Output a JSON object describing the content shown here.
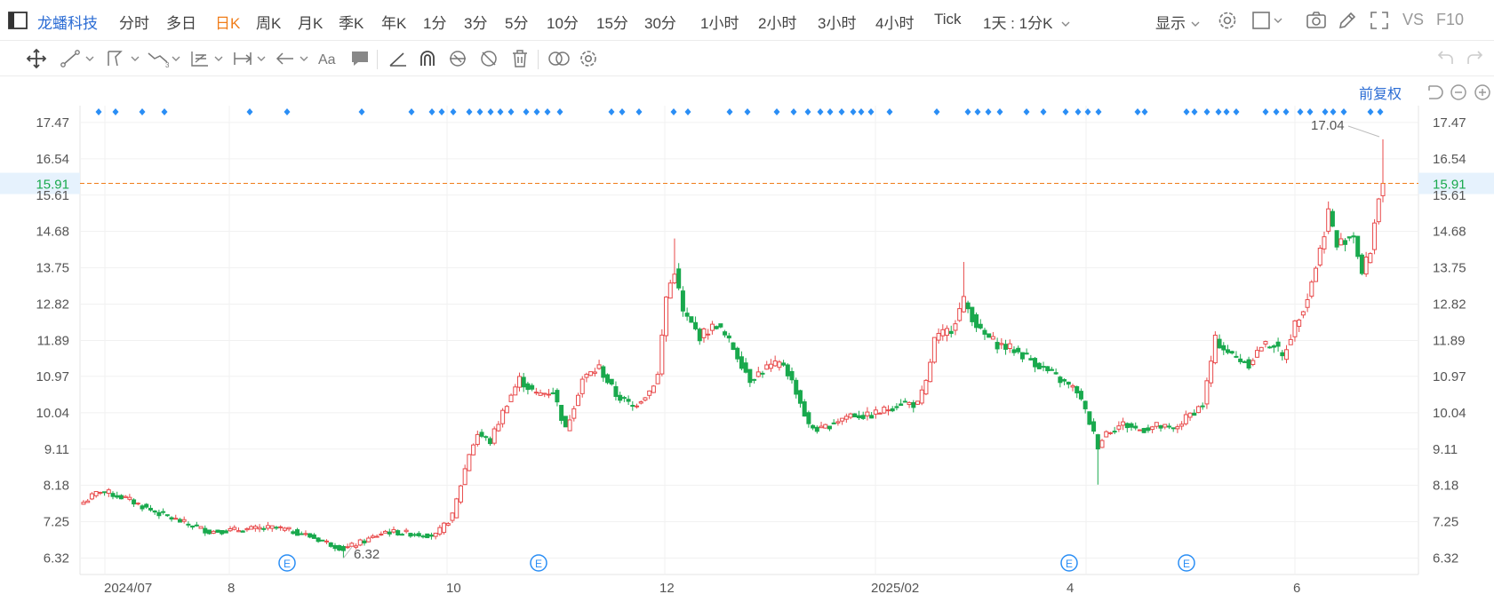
{
  "header": {
    "stock_name": "龙蟠科技",
    "periods": [
      "分时",
      "多日",
      "日K",
      "周K",
      "月K",
      "季K",
      "年K",
      "1分",
      "3分",
      "5分",
      "10分",
      "15分",
      "30分",
      "1小时",
      "2小时",
      "3小时",
      "4小时",
      "Tick"
    ],
    "active_period": "日K",
    "interval_select": "1天 : 1分K",
    "display_label": "显示",
    "vs_label": "VS",
    "f10_label": "F10"
  },
  "chart": {
    "adjust_label": "前复权",
    "current_price": "15.91",
    "y_ticks": [
      "17.47",
      "16.54",
      "15.61",
      "14.68",
      "13.75",
      "12.82",
      "11.89",
      "10.97",
      "10.04",
      "9.11",
      "8.18",
      "7.25",
      "6.32"
    ],
    "x_ticks": [
      "2024/07",
      "8",
      "10",
      "12",
      "2025/02",
      "4",
      "6"
    ],
    "high_label": "17.04",
    "low_label": "6.32",
    "event_marker": "E",
    "colors": {
      "up": "#e8494a",
      "down": "#19a94d",
      "price_line": "#f07d1a",
      "brand": "#2b6cd4",
      "dot": "#2a8ef5"
    }
  },
  "chart_data": {
    "type": "candlestick",
    "ylim": [
      5.9,
      17.9
    ],
    "xlabel": "",
    "ylabel": "",
    "grid": true,
    "high": 17.04,
    "low": 6.32,
    "last_price": 15.91,
    "anchors": [
      [
        0,
        7.75
      ],
      [
        4,
        8.05
      ],
      [
        10,
        7.85
      ],
      [
        16,
        7.55
      ],
      [
        22,
        7.3
      ],
      [
        30,
        7.0
      ],
      [
        38,
        7.05
      ],
      [
        46,
        7.1
      ],
      [
        52,
        6.95
      ],
      [
        58,
        6.72
      ],
      [
        62,
        6.55
      ],
      [
        68,
        6.8
      ],
      [
        72,
        7.0
      ],
      [
        78,
        6.95
      ],
      [
        84,
        6.9
      ],
      [
        88,
        7.4
      ],
      [
        90,
        8.2
      ],
      [
        92,
        9.0
      ],
      [
        94,
        9.5
      ],
      [
        97,
        9.3
      ],
      [
        101,
        10.3
      ],
      [
        104,
        10.9
      ],
      [
        108,
        10.5
      ],
      [
        112,
        10.6
      ],
      [
        115,
        9.6
      ],
      [
        119,
        10.9
      ],
      [
        123,
        11.2
      ],
      [
        127,
        10.5
      ],
      [
        131,
        10.2
      ],
      [
        135,
        10.6
      ],
      [
        137,
        11.0
      ],
      [
        139,
        13.0
      ],
      [
        141,
        13.7
      ],
      [
        143,
        12.6
      ],
      [
        147,
        12.0
      ],
      [
        151,
        12.3
      ],
      [
        155,
        11.7
      ],
      [
        159,
        10.9
      ],
      [
        163,
        11.2
      ],
      [
        167,
        11.3
      ],
      [
        170,
        10.6
      ],
      [
        173,
        9.7
      ],
      [
        176,
        9.6
      ],
      [
        179,
        9.8
      ],
      [
        183,
        10.0
      ],
      [
        187,
        9.95
      ],
      [
        191,
        10.1
      ],
      [
        195,
        10.3
      ],
      [
        199,
        10.25
      ],
      [
        201,
        10.8
      ],
      [
        203,
        11.9
      ],
      [
        207,
        12.2
      ],
      [
        210,
        12.9
      ],
      [
        212,
        12.5
      ],
      [
        214,
        12.1
      ],
      [
        218,
        11.8
      ],
      [
        222,
        11.65
      ],
      [
        226,
        11.4
      ],
      [
        230,
        11.1
      ],
      [
        234,
        10.8
      ],
      [
        237,
        10.6
      ],
      [
        240,
        9.8
      ],
      [
        242,
        9.2
      ],
      [
        244,
        9.55
      ],
      [
        248,
        9.75
      ],
      [
        252,
        9.6
      ],
      [
        256,
        9.7
      ],
      [
        260,
        9.6
      ],
      [
        264,
        10.0
      ],
      [
        267,
        10.25
      ],
      [
        270,
        11.9
      ],
      [
        274,
        11.5
      ],
      [
        278,
        11.3
      ],
      [
        281,
        11.75
      ],
      [
        284,
        11.8
      ],
      [
        286,
        11.45
      ],
      [
        289,
        12.3
      ],
      [
        292,
        13.0
      ],
      [
        295,
        14.2
      ],
      [
        297,
        15.2
      ],
      [
        299,
        14.3
      ],
      [
        301,
        14.5
      ],
      [
        303,
        14.6
      ],
      [
        305,
        13.6
      ],
      [
        307,
        14.2
      ],
      [
        309,
        15.6
      ],
      [
        310,
        15.91
      ]
    ]
  }
}
